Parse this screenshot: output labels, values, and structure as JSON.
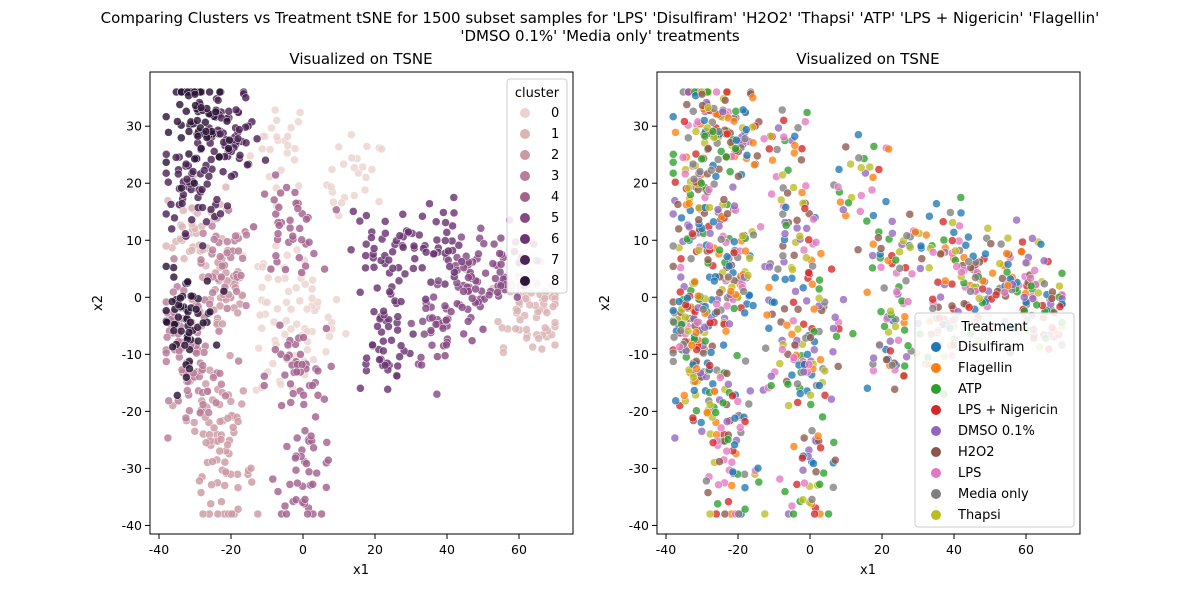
{
  "figure": {
    "suptitle_line1": "Comparing Clusters vs Treatment tSNE for 1500 subset samples for 'LPS' 'Disulfiram' 'H2O2' 'Thapsi' 'ATP' 'LPS + Nigericin' 'Flagellin'",
    "suptitle_line2": "'DMSO 0.1%' 'Media only' treatments"
  },
  "chart_data": [
    {
      "type": "scatter",
      "title": "Visualized on TSNE",
      "xlabel": "x1",
      "ylabel": "x2",
      "xlim": [
        -42.5,
        75
      ],
      "ylim": [
        -41.5,
        39.5
      ],
      "xticks": [
        -40,
        -20,
        0,
        20,
        40,
        60
      ],
      "yticks": [
        -40,
        -30,
        -20,
        -10,
        0,
        10,
        20,
        30
      ],
      "legend": {
        "title": "cluster",
        "placement": "top-right",
        "entries": [
          "0",
          "1",
          "2",
          "3",
          "4",
          "5",
          "6",
          "7",
          "8"
        ],
        "colors": [
          "#ebd3d0",
          "#dcb4b4",
          "#cc98a3",
          "#b87d98",
          "#a2628e",
          "#874b84",
          "#6a3571",
          "#4c2456",
          "#2d1638"
        ]
      },
      "clusters": [
        {
          "name": "0",
          "color": "#ebd3d0",
          "centers": [
            [
              -6,
              27
            ],
            [
              15,
              20
            ],
            [
              -8,
              2
            ],
            [
              3,
              -4
            ],
            [
              -5,
              -10
            ]
          ]
        },
        {
          "name": "1",
          "color": "#dcb4b4",
          "centers": [
            [
              66,
              -2
            ],
            [
              60,
              0
            ],
            [
              -30,
              12
            ]
          ]
        },
        {
          "name": "2",
          "color": "#cc98a3",
          "centers": [
            [
              -24,
              -20
            ],
            [
              -22,
              -31
            ],
            [
              -22,
              0
            ]
          ]
        },
        {
          "name": "3",
          "color": "#b87d98",
          "centers": [
            [
              -34,
              -7
            ],
            [
              -22,
              5
            ],
            [
              -28,
              -14
            ]
          ]
        },
        {
          "name": "4",
          "color": "#a2628e",
          "centers": [
            [
              1,
              -31
            ],
            [
              -4,
              12
            ],
            [
              -2,
              -14
            ]
          ]
        },
        {
          "name": "5",
          "color": "#874b84",
          "centers": [
            [
              47,
              2
            ],
            [
              38,
              -5
            ],
            [
              55,
              6
            ]
          ]
        },
        {
          "name": "6",
          "color": "#6a3571",
          "centers": [
            [
              22,
              -8
            ],
            [
              21,
              7
            ],
            [
              36,
              9
            ]
          ]
        },
        {
          "name": "7",
          "color": "#4c2456",
          "centers": [
            [
              -20,
              28
            ],
            [
              -30,
              20
            ]
          ]
        },
        {
          "name": "8",
          "color": "#2d1638",
          "centers": [
            [
              -33,
              -4
            ],
            [
              -28,
              31
            ]
          ]
        }
      ]
    },
    {
      "type": "scatter",
      "title": "Visualized on TSNE",
      "xlabel": "x1",
      "ylabel": "x2",
      "xlim": [
        -42.5,
        75
      ],
      "ylim": [
        -41.5,
        39.5
      ],
      "xticks": [
        -40,
        -20,
        0,
        20,
        40,
        60
      ],
      "yticks": [
        -40,
        -30,
        -20,
        -10,
        0,
        10,
        20,
        30
      ],
      "legend": {
        "title": "Treatment",
        "placement": "bottom-right",
        "entries": [
          "Disulfiram",
          "Flagellin",
          "ATP",
          "LPS + Nigericin",
          "DMSO 0.1%",
          "H2O2",
          "LPS",
          "Media only",
          "Thapsi"
        ],
        "colors": [
          "#1f77b4",
          "#ff7f0e",
          "#2ca02c",
          "#d62728",
          "#9467bd",
          "#8c564b",
          "#e377c2",
          "#7f7f7f",
          "#bcbd22"
        ]
      }
    }
  ]
}
